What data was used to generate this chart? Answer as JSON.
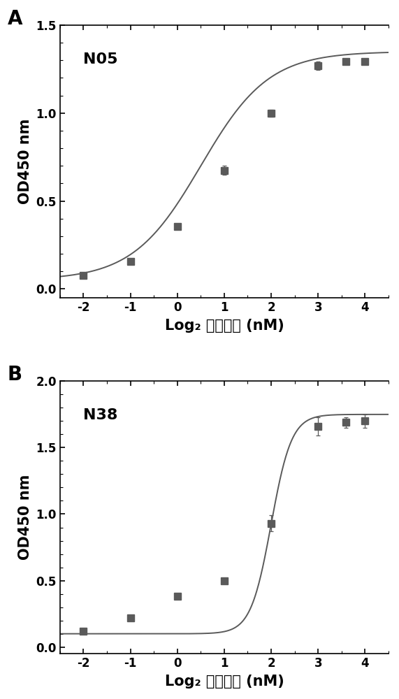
{
  "panel_A": {
    "label": "A",
    "title": "N05",
    "x": [
      -2,
      -1,
      0,
      1,
      2,
      3,
      3.585,
      4
    ],
    "y": [
      0.075,
      0.155,
      0.355,
      0.675,
      1.0,
      1.27,
      1.295,
      1.295
    ],
    "yerr": [
      0.008,
      0.008,
      0.01,
      0.025,
      0.02,
      0.025,
      0.015,
      0.015
    ],
    "ylim": [
      -0.05,
      1.5
    ],
    "ylim_display": [
      0,
      1.5
    ],
    "yticks": [
      0.0,
      0.5,
      1.0,
      1.5
    ],
    "xlabel": "Log₂ 抗体浓度 (nM)",
    "ylabel": "OD450 nm",
    "hill_p0": [
      0.05,
      1.35,
      0.5,
      0.6
    ]
  },
  "panel_B": {
    "label": "B",
    "title": "N38",
    "x": [
      -2,
      -1,
      0,
      1,
      2,
      3,
      3.585,
      4
    ],
    "y": [
      0.12,
      0.22,
      0.38,
      0.5,
      0.93,
      1.66,
      1.69,
      1.7
    ],
    "yerr": [
      0.01,
      0.01,
      0.015,
      0.015,
      0.06,
      0.07,
      0.04,
      0.05
    ],
    "ylim": [
      -0.05,
      2.0
    ],
    "ylim_display": [
      0,
      2.0
    ],
    "yticks": [
      0.0,
      0.5,
      1.0,
      1.5,
      2.0
    ],
    "xlabel": "Log₂ 抗体浓度 (nM)",
    "ylabel": "OD450 nm",
    "hill_p0": [
      0.1,
      1.75,
      2.0,
      2.0
    ]
  },
  "line_color": "#5a5a5a",
  "marker_color": "#5a5a5a",
  "marker_size": 6.5,
  "linewidth": 1.4,
  "capsize": 2.5,
  "xlim": [
    -2.5,
    4.5
  ],
  "xticks": [
    -2,
    -1,
    0,
    1,
    2,
    3,
    4
  ],
  "figure_bg": "#ffffff",
  "axes_bg": "#ffffff",
  "label_fontsize": 15,
  "tick_fontsize": 12,
  "title_fontsize": 16,
  "panel_label_fontsize": 20
}
